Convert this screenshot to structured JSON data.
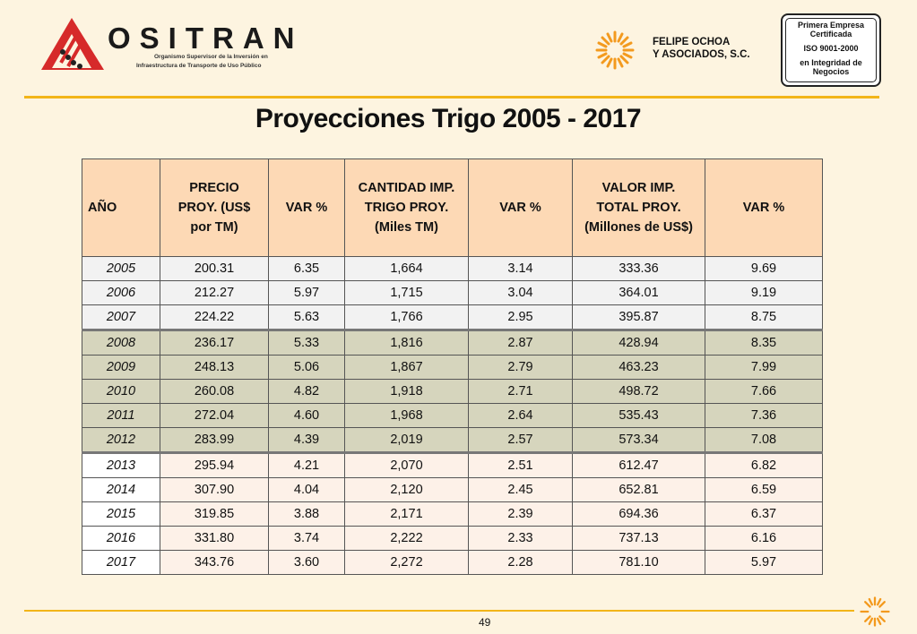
{
  "header": {
    "ositran_name": "OSITRAN",
    "ositran_sub1": "Organismo Supervisor de la Inversión en",
    "ositran_sub2": "Infraestructura de Transporte de Uso Público",
    "foa_line1": "FELIPE OCHOA",
    "foa_line2": "Y ASOCIADOS, S.C.",
    "iso_line1": "Primera Empresa",
    "iso_line2": "Certificada",
    "iso_line3": "ISO 9001-2000",
    "iso_line4": "en Integridad de",
    "iso_line5": "Negocios"
  },
  "title": "Proyecciones Trigo 2005 - 2017",
  "table": {
    "headers": {
      "year": "AÑO",
      "price_l1": "PRECIO",
      "price_l2": "PROY. (US$",
      "price_l3": "por TM)",
      "var1": "VAR %",
      "qty_l1": "CANTIDAD IMP.",
      "qty_l2": "TRIGO PROY.",
      "qty_l3": "(Miles TM)",
      "var2": "VAR %",
      "val_l1": "VALOR IMP.",
      "val_l2": "TOTAL PROY.",
      "val_l3": "(Millones de US$)",
      "var3": "VAR %"
    },
    "rows": [
      [
        "2005",
        "200.31",
        "6.35",
        "1,664",
        "3.14",
        "333.36",
        "9.69"
      ],
      [
        "2006",
        "212.27",
        "5.97",
        "1,715",
        "3.04",
        "364.01",
        "9.19"
      ],
      [
        "2007",
        "224.22",
        "5.63",
        "1,766",
        "2.95",
        "395.87",
        "8.75"
      ],
      [
        "2008",
        "236.17",
        "5.33",
        "1,816",
        "2.87",
        "428.94",
        "8.35"
      ],
      [
        "2009",
        "248.13",
        "5.06",
        "1,867",
        "2.79",
        "463.23",
        "7.99"
      ],
      [
        "2010",
        "260.08",
        "4.82",
        "1,918",
        "2.71",
        "498.72",
        "7.66"
      ],
      [
        "2011",
        "272.04",
        "4.60",
        "1,968",
        "2.64",
        "535.43",
        "7.36"
      ],
      [
        "2012",
        "283.99",
        "4.39",
        "2,019",
        "2.57",
        "573.34",
        "7.08"
      ],
      [
        "2013",
        "295.94",
        "4.21",
        "2,070",
        "2.51",
        "612.47",
        "6.82"
      ],
      [
        "2014",
        "307.90",
        "4.04",
        "2,120",
        "2.45",
        "652.81",
        "6.59"
      ],
      [
        "2015",
        "319.85",
        "3.88",
        "2,171",
        "2.39",
        "694.36",
        "6.37"
      ],
      [
        "2016",
        "331.80",
        "3.74",
        "2,222",
        "2.33",
        "737.13",
        "6.16"
      ],
      [
        "2017",
        "343.76",
        "3.60",
        "2,272",
        "2.28",
        "781.10",
        "5.97"
      ]
    ]
  },
  "page_number": "49",
  "colors": {
    "accent_rule": "#f2b519",
    "header_fill": "#fdd9b5",
    "group1_fill": "#f2f2f2",
    "group2_fill": "#d6d5bd",
    "group3_fill": "#fdf1e8",
    "ositran_red": "#d62a2a",
    "foa_orange": "#f39a1e"
  },
  "icons": [
    "ositran-triangle-logo-icon",
    "felipe-ochoa-sun-logo-icon"
  ]
}
